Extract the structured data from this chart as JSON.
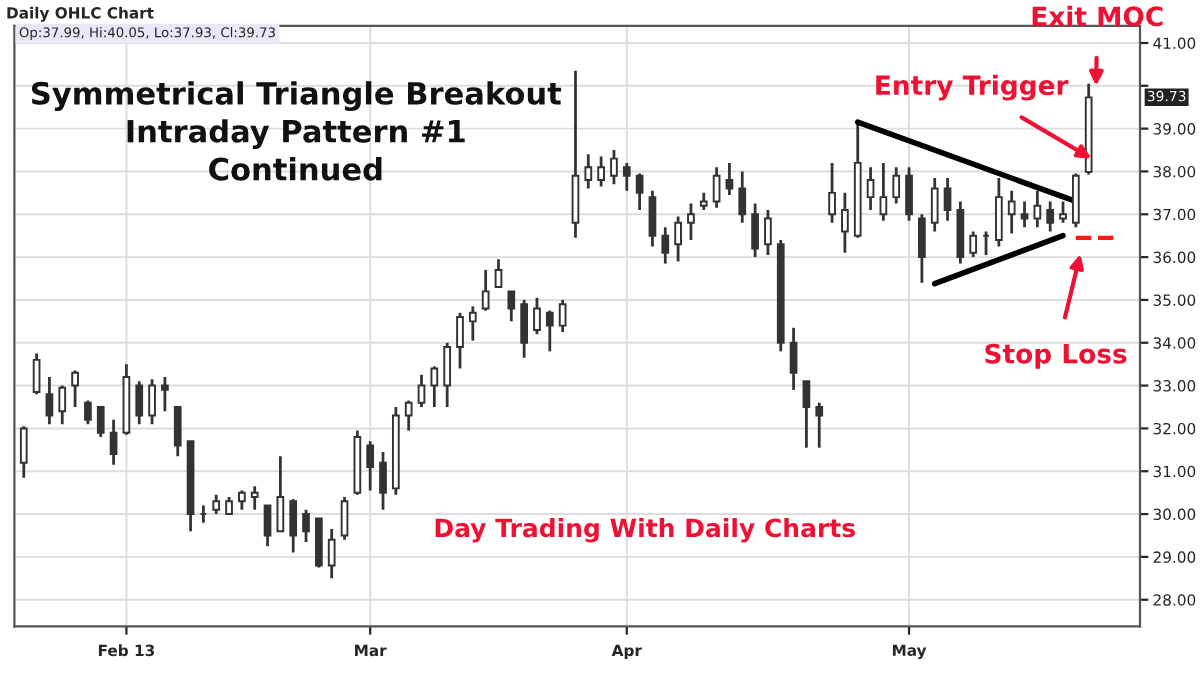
{
  "chart_data": {
    "type": "candlestick",
    "title": "Daily OHLC Chart",
    "subtitle": "Op:37.99, Hi:40.05, Lo:37.93, Cl:39.73",
    "color": "#333333",
    "categories": [
      null,
      null,
      null,
      null,
      null,
      null,
      null,
      null,
      "Feb 13",
      null,
      null,
      null,
      null,
      null,
      null,
      null,
      null,
      null,
      null,
      null,
      null,
      null,
      null,
      null,
      null,
      null,
      null,
      "Mar",
      null,
      null,
      null,
      null,
      null,
      null,
      null,
      null,
      null,
      null,
      null,
      null,
      null,
      null,
      null,
      null,
      null,
      null,
      null,
      "Apr",
      null,
      null,
      null,
      null,
      null,
      null,
      null,
      null,
      null,
      null,
      null,
      null,
      null,
      null,
      null,
      null,
      null,
      null,
      null,
      null,
      null,
      "May",
      null,
      null,
      null,
      null,
      null,
      null,
      null,
      null,
      null,
      null,
      null,
      null,
      null,
      null,
      null,
      null,
      null
    ],
    "ohlc": [
      [
        31.2,
        32.05,
        30.85,
        32.0
      ],
      [
        32.85,
        33.75,
        32.8,
        33.6
      ],
      [
        32.8,
        33.2,
        32.1,
        32.3
      ],
      [
        32.4,
        33.0,
        32.1,
        32.95
      ],
      [
        33.0,
        33.35,
        32.5,
        33.3
      ],
      [
        32.6,
        32.65,
        32.1,
        32.2
      ],
      [
        32.5,
        32.5,
        31.8,
        31.9
      ],
      [
        31.9,
        32.2,
        31.15,
        31.4
      ],
      [
        31.9,
        33.5,
        31.85,
        33.2
      ],
      [
        33.0,
        33.1,
        32.1,
        32.3
      ],
      [
        32.3,
        33.15,
        32.1,
        33.0
      ],
      [
        33.0,
        33.2,
        32.4,
        32.9
      ],
      [
        32.5,
        32.5,
        31.35,
        31.6
      ],
      [
        31.7,
        31.7,
        29.6,
        30.0
      ],
      [
        30.0,
        30.2,
        29.8,
        30.0
      ],
      [
        30.1,
        30.45,
        30.0,
        30.3
      ],
      [
        30.0,
        30.4,
        30.0,
        30.3
      ],
      [
        30.3,
        30.55,
        30.1,
        30.5
      ],
      [
        30.4,
        30.65,
        30.1,
        30.5
      ],
      [
        30.2,
        30.2,
        29.25,
        29.5
      ],
      [
        29.6,
        31.35,
        29.6,
        30.4
      ],
      [
        30.3,
        30.35,
        29.1,
        29.5
      ],
      [
        30.0,
        30.1,
        29.35,
        29.6
      ],
      [
        29.9,
        29.9,
        28.75,
        28.8
      ],
      [
        28.8,
        29.65,
        28.5,
        29.4
      ],
      [
        29.5,
        30.4,
        29.4,
        30.3
      ],
      [
        30.5,
        31.95,
        30.45,
        31.8
      ],
      [
        31.6,
        31.7,
        30.55,
        31.1
      ],
      [
        31.2,
        31.45,
        30.1,
        30.5
      ],
      [
        30.6,
        32.5,
        30.45,
        32.3
      ],
      [
        32.3,
        32.65,
        31.95,
        32.6
      ],
      [
        32.6,
        33.25,
        32.5,
        33.0
      ],
      [
        33.0,
        33.45,
        32.5,
        33.4
      ],
      [
        33.0,
        34.0,
        32.5,
        33.9
      ],
      [
        33.9,
        34.7,
        33.4,
        34.6
      ],
      [
        34.5,
        34.85,
        34.05,
        34.7
      ],
      [
        34.8,
        35.7,
        34.75,
        35.2
      ],
      [
        35.3,
        35.95,
        35.3,
        35.7
      ],
      [
        35.2,
        35.2,
        34.5,
        34.8
      ],
      [
        34.9,
        35.0,
        33.65,
        34.0
      ],
      [
        34.3,
        35.05,
        34.2,
        34.8
      ],
      [
        34.7,
        34.75,
        33.8,
        34.4
      ],
      [
        34.4,
        35.0,
        34.25,
        34.9
      ],
      [
        36.8,
        40.35,
        36.45,
        37.9
      ],
      [
        37.8,
        38.4,
        37.6,
        38.1
      ],
      [
        37.8,
        38.35,
        37.65,
        38.1
      ],
      [
        37.9,
        38.5,
        37.7,
        38.3
      ],
      [
        38.1,
        38.2,
        37.55,
        37.9
      ],
      [
        37.9,
        37.95,
        37.1,
        37.5
      ],
      [
        37.4,
        37.55,
        36.25,
        36.5
      ],
      [
        36.5,
        36.7,
        35.85,
        36.1
      ],
      [
        36.3,
        36.95,
        35.9,
        36.8
      ],
      [
        36.8,
        37.25,
        36.4,
        37.0
      ],
      [
        37.2,
        37.5,
        37.1,
        37.3
      ],
      [
        37.3,
        38.1,
        37.15,
        37.9
      ],
      [
        37.8,
        38.2,
        37.45,
        37.6
      ],
      [
        37.6,
        38.0,
        36.8,
        37.0
      ],
      [
        37.0,
        37.25,
        36.0,
        36.2
      ],
      [
        36.3,
        37.1,
        36.05,
        36.9
      ],
      [
        36.3,
        36.4,
        33.8,
        34.0
      ],
      [
        34.0,
        34.35,
        32.9,
        33.3
      ],
      [
        33.1,
        33.1,
        31.55,
        32.5
      ],
      [
        32.5,
        32.6,
        31.55,
        32.3
      ],
      [
        37.0,
        38.2,
        36.8,
        37.5
      ],
      [
        36.6,
        37.5,
        36.1,
        37.1
      ],
      [
        36.5,
        39.2,
        36.45,
        38.2
      ],
      [
        37.4,
        38.1,
        37.1,
        37.8
      ],
      [
        37.0,
        38.2,
        36.85,
        37.4
      ],
      [
        37.4,
        38.1,
        37.25,
        37.9
      ],
      [
        37.9,
        38.1,
        36.85,
        37.0
      ],
      [
        36.9,
        37.0,
        35.4,
        36.0
      ],
      [
        36.8,
        37.85,
        36.6,
        37.6
      ],
      [
        37.6,
        37.85,
        36.85,
        37.1
      ],
      [
        37.1,
        37.3,
        35.85,
        36.0
      ],
      [
        36.1,
        36.6,
        36.0,
        36.5
      ],
      [
        36.5,
        36.6,
        36.05,
        36.5
      ],
      [
        36.4,
        37.85,
        36.25,
        37.4
      ],
      [
        37.0,
        37.55,
        36.55,
        37.3
      ],
      [
        37.0,
        37.3,
        36.7,
        36.9
      ],
      [
        36.9,
        37.55,
        36.7,
        37.2
      ],
      [
        37.1,
        37.3,
        36.6,
        36.8
      ],
      [
        36.9,
        37.3,
        36.8,
        37.0
      ],
      [
        36.8,
        37.95,
        36.7,
        37.9
      ],
      [
        37.99,
        40.05,
        37.93,
        39.73
      ],
      null,
      null,
      null
    ],
    "series": [
      {
        "type": "line",
        "values": [
          null,
          null,
          null,
          null,
          null,
          null,
          null,
          null,
          null,
          null,
          null,
          null,
          null,
          null,
          null,
          null,
          null,
          null,
          null,
          null,
          null,
          null,
          null,
          null,
          null,
          null,
          null,
          null,
          null,
          null,
          null,
          null,
          null,
          null,
          null,
          null,
          null,
          null,
          null,
          null,
          null,
          null,
          null,
          null,
          null,
          null,
          null,
          null,
          null,
          null,
          null,
          null,
          null,
          null,
          null,
          null,
          null,
          null,
          null,
          null,
          null,
          null,
          null,
          null,
          null,
          39.15,
          null,
          null,
          null,
          null,
          null,
          null,
          null,
          null,
          null,
          null,
          null,
          null,
          null,
          null,
          null,
          null,
          37.3,
          null,
          null,
          null,
          null
        ],
        "color": "#000000",
        "line_style": "solid"
      },
      {
        "type": "line",
        "values": [
          null,
          null,
          null,
          null,
          null,
          null,
          null,
          null,
          null,
          null,
          null,
          null,
          null,
          null,
          null,
          null,
          null,
          null,
          null,
          null,
          null,
          null,
          null,
          null,
          null,
          null,
          null,
          null,
          null,
          null,
          null,
          null,
          null,
          null,
          null,
          null,
          null,
          null,
          null,
          null,
          null,
          null,
          null,
          null,
          null,
          null,
          null,
          null,
          null,
          null,
          null,
          null,
          null,
          null,
          null,
          null,
          null,
          null,
          null,
          null,
          null,
          null,
          null,
          null,
          null,
          null,
          null,
          null,
          null,
          null,
          null,
          35.38,
          null,
          null,
          null,
          null,
          null,
          null,
          null,
          null,
          null,
          36.5,
          null,
          null,
          null,
          null,
          null
        ],
        "color": "#000000",
        "line_style": "solid"
      },
      {
        "type": "line",
        "values": [
          null,
          null,
          null,
          null,
          null,
          null,
          null,
          null,
          null,
          null,
          null,
          null,
          null,
          null,
          null,
          null,
          null,
          null,
          null,
          null,
          null,
          null,
          null,
          null,
          null,
          null,
          null,
          null,
          null,
          null,
          null,
          null,
          null,
          null,
          null,
          null,
          null,
          null,
          null,
          null,
          null,
          null,
          null,
          null,
          null,
          null,
          null,
          null,
          null,
          null,
          null,
          null,
          null,
          null,
          null,
          null,
          null,
          null,
          null,
          null,
          null,
          null,
          null,
          null,
          null,
          null,
          null,
          null,
          null,
          null,
          null,
          null,
          null,
          null,
          null,
          null,
          null,
          null,
          null,
          null,
          null,
          null,
          36.45,
          null,
          null,
          36.45,
          null
        ],
        "color": "#ff1a1a",
        "line_style": "dashed"
      }
    ],
    "ylim": [
      27.38,
      41.4
    ],
    "yticks": [
      {
        "value": 28,
        "label": "28.00"
      },
      {
        "value": 29,
        "label": "29.00"
      },
      {
        "value": 30,
        "label": "30.00"
      },
      {
        "value": 31,
        "label": "31.00"
      },
      {
        "value": 32,
        "label": "32.00"
      },
      {
        "value": 33,
        "label": "33.00"
      },
      {
        "value": 34,
        "label": "34.00"
      },
      {
        "value": 35,
        "label": "35.00"
      },
      {
        "value": 36,
        "label": "36.00"
      },
      {
        "value": 37,
        "label": "37.00"
      },
      {
        "value": 38,
        "label": "38.00"
      },
      {
        "value": 39,
        "label": "39.00"
      },
      {
        "value": 40,
        "label": null
      },
      {
        "value": 41,
        "label": "41.00"
      }
    ],
    "grid": true,
    "annotations": [
      "Symmetrical Triangle Breakout\nIntraday Pattern #1\nContinued",
      "Day Trading With Daily Charts",
      "Exit MOC",
      {
        "text": "Entry Trigger",
        "y": 38.3
      },
      "Stop Loss",
      "39.73"
    ]
  }
}
